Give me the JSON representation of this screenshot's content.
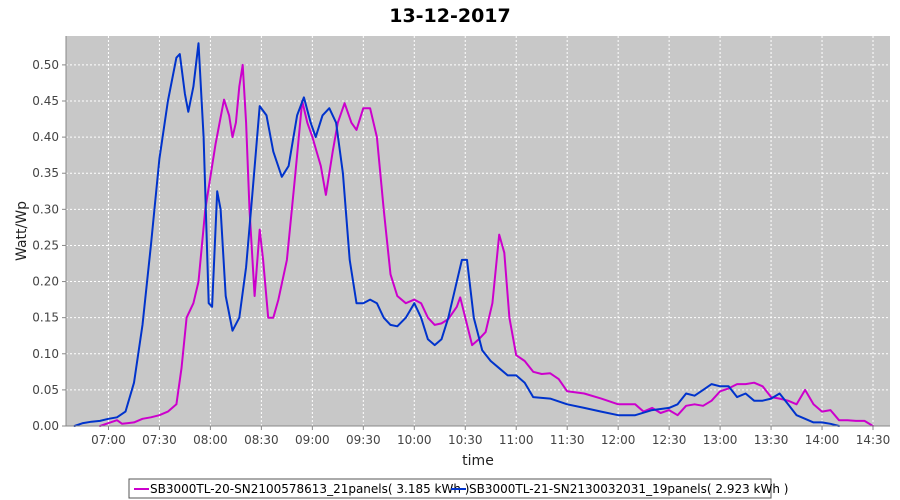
{
  "chart_data": {
    "type": "line",
    "title": "13-12-2017",
    "xlabel": "time",
    "ylabel": "Watt/Wp",
    "xlim": [
      "06:35",
      "14:40"
    ],
    "ylim": [
      0,
      0.54
    ],
    "grid": true,
    "legend": "bottom",
    "x_ticks": [
      "07:00",
      "07:30",
      "08:00",
      "08:30",
      "09:00",
      "09:30",
      "10:00",
      "10:30",
      "11:00",
      "11:30",
      "12:00",
      "12:30",
      "13:00",
      "13:30",
      "14:00",
      "14:30"
    ],
    "y_ticks": [
      0.0,
      0.05,
      0.1,
      0.15,
      0.2,
      0.25,
      0.3,
      0.35,
      0.4,
      0.45,
      0.5
    ],
    "y_tick_labels": [
      "0.00",
      "0.05",
      "0.10",
      "0.15",
      "0.20",
      "0.25",
      "0.30",
      "0.35",
      "0.40",
      "0.45",
      "0.50"
    ],
    "series": [
      {
        "name": "SB3000TL-20-SN2100578613_21panels( 3.185 kWh )",
        "color": "#cc00cc",
        "points": [
          [
            "06:55",
            0.0
          ],
          [
            "07:00",
            0.004
          ],
          [
            "07:05",
            0.008
          ],
          [
            "07:08",
            0.003
          ],
          [
            "07:15",
            0.005
          ],
          [
            "07:20",
            0.01
          ],
          [
            "07:25",
            0.012
          ],
          [
            "07:30",
            0.015
          ],
          [
            "07:35",
            0.02
          ],
          [
            "07:40",
            0.03
          ],
          [
            "07:43",
            0.08
          ],
          [
            "07:46",
            0.15
          ],
          [
            "07:50",
            0.17
          ],
          [
            "07:53",
            0.2
          ],
          [
            "07:57",
            0.3
          ],
          [
            "08:03",
            0.39
          ],
          [
            "08:08",
            0.452
          ],
          [
            "08:11",
            0.43
          ],
          [
            "08:13",
            0.4
          ],
          [
            "08:15",
            0.42
          ],
          [
            "08:17",
            0.47
          ],
          [
            "08:19",
            0.5
          ],
          [
            "08:21",
            0.42
          ],
          [
            "08:23",
            0.3
          ],
          [
            "08:26",
            0.18
          ],
          [
            "08:29",
            0.272
          ],
          [
            "08:31",
            0.23
          ],
          [
            "08:34",
            0.15
          ],
          [
            "08:37",
            0.15
          ],
          [
            "08:40",
            0.175
          ],
          [
            "08:45",
            0.23
          ],
          [
            "08:50",
            0.35
          ],
          [
            "08:54",
            0.45
          ],
          [
            "08:57",
            0.42
          ],
          [
            "09:00",
            0.4
          ],
          [
            "09:05",
            0.36
          ],
          [
            "09:08",
            0.32
          ],
          [
            "09:12",
            0.38
          ],
          [
            "09:15",
            0.42
          ],
          [
            "09:19",
            0.447
          ],
          [
            "09:23",
            0.42
          ],
          [
            "09:26",
            0.41
          ],
          [
            "09:30",
            0.44
          ],
          [
            "09:34",
            0.44
          ],
          [
            "09:38",
            0.4
          ],
          [
            "09:42",
            0.3
          ],
          [
            "09:46",
            0.21
          ],
          [
            "09:50",
            0.18
          ],
          [
            "09:55",
            0.17
          ],
          [
            "10:00",
            0.175
          ],
          [
            "10:04",
            0.17
          ],
          [
            "10:08",
            0.15
          ],
          [
            "10:12",
            0.14
          ],
          [
            "10:16",
            0.142
          ],
          [
            "10:20",
            0.148
          ],
          [
            "10:25",
            0.165
          ],
          [
            "10:27",
            0.178
          ],
          [
            "10:30",
            0.15
          ],
          [
            "10:34",
            0.112
          ],
          [
            "10:38",
            0.12
          ],
          [
            "10:42",
            0.13
          ],
          [
            "10:46",
            0.17
          ],
          [
            "10:50",
            0.265
          ],
          [
            "10:53",
            0.24
          ],
          [
            "10:56",
            0.15
          ],
          [
            "11:00",
            0.098
          ],
          [
            "11:05",
            0.09
          ],
          [
            "11:10",
            0.075
          ],
          [
            "11:15",
            0.072
          ],
          [
            "11:20",
            0.073
          ],
          [
            "11:25",
            0.065
          ],
          [
            "11:30",
            0.048
          ],
          [
            "11:40",
            0.045
          ],
          [
            "11:50",
            0.038
          ],
          [
            "12:00",
            0.03
          ],
          [
            "12:10",
            0.03
          ],
          [
            "12:15",
            0.02
          ],
          [
            "12:20",
            0.025
          ],
          [
            "12:25",
            0.018
          ],
          [
            "12:30",
            0.022
          ],
          [
            "12:35",
            0.015
          ],
          [
            "12:40",
            0.028
          ],
          [
            "12:45",
            0.03
          ],
          [
            "12:50",
            0.028
          ],
          [
            "12:55",
            0.035
          ],
          [
            "13:00",
            0.048
          ],
          [
            "13:05",
            0.052
          ],
          [
            "13:10",
            0.058
          ],
          [
            "13:15",
            0.058
          ],
          [
            "13:20",
            0.06
          ],
          [
            "13:25",
            0.055
          ],
          [
            "13:30",
            0.04
          ],
          [
            "13:35",
            0.038
          ],
          [
            "13:40",
            0.035
          ],
          [
            "13:45",
            0.03
          ],
          [
            "13:50",
            0.05
          ],
          [
            "13:55",
            0.03
          ],
          [
            "14:00",
            0.02
          ],
          [
            "14:05",
            0.022
          ],
          [
            "14:10",
            0.008
          ],
          [
            "14:15",
            0.008
          ],
          [
            "14:20",
            0.007
          ],
          [
            "14:25",
            0.007
          ],
          [
            "14:30",
            0.0
          ]
        ]
      },
      {
        "name": "SB3000TL-21-SN2130032031_19panels( 2.923 kWh )",
        "color": "#0033cc",
        "points": [
          [
            "06:40",
            0.0
          ],
          [
            "06:45",
            0.004
          ],
          [
            "06:50",
            0.006
          ],
          [
            "06:55",
            0.007
          ],
          [
            "07:00",
            0.01
          ],
          [
            "07:05",
            0.012
          ],
          [
            "07:10",
            0.02
          ],
          [
            "07:15",
            0.06
          ],
          [
            "07:20",
            0.14
          ],
          [
            "07:25",
            0.25
          ],
          [
            "07:30",
            0.37
          ],
          [
            "07:35",
            0.45
          ],
          [
            "07:40",
            0.51
          ],
          [
            "07:42",
            0.515
          ],
          [
            "07:45",
            0.46
          ],
          [
            "07:47",
            0.435
          ],
          [
            "07:50",
            0.47
          ],
          [
            "07:53",
            0.53
          ],
          [
            "07:56",
            0.4
          ],
          [
            "07:59",
            0.17
          ],
          [
            "08:01",
            0.165
          ],
          [
            "08:04",
            0.325
          ],
          [
            "08:06",
            0.3
          ],
          [
            "08:09",
            0.18
          ],
          [
            "08:13",
            0.132
          ],
          [
            "08:17",
            0.15
          ],
          [
            "08:21",
            0.22
          ],
          [
            "08:25",
            0.33
          ],
          [
            "08:29",
            0.443
          ],
          [
            "08:33",
            0.43
          ],
          [
            "08:37",
            0.38
          ],
          [
            "08:42",
            0.345
          ],
          [
            "08:46",
            0.36
          ],
          [
            "08:51",
            0.43
          ],
          [
            "08:55",
            0.455
          ],
          [
            "08:59",
            0.42
          ],
          [
            "09:02",
            0.4
          ],
          [
            "09:06",
            0.43
          ],
          [
            "09:10",
            0.44
          ],
          [
            "09:14",
            0.42
          ],
          [
            "09:18",
            0.35
          ],
          [
            "09:22",
            0.23
          ],
          [
            "09:26",
            0.17
          ],
          [
            "09:30",
            0.17
          ],
          [
            "09:34",
            0.175
          ],
          [
            "09:38",
            0.17
          ],
          [
            "09:42",
            0.15
          ],
          [
            "09:46",
            0.14
          ],
          [
            "09:50",
            0.138
          ],
          [
            "09:55",
            0.15
          ],
          [
            "10:00",
            0.17
          ],
          [
            "10:04",
            0.15
          ],
          [
            "10:08",
            0.12
          ],
          [
            "10:12",
            0.112
          ],
          [
            "10:16",
            0.12
          ],
          [
            "10:20",
            0.15
          ],
          [
            "10:24",
            0.19
          ],
          [
            "10:28",
            0.23
          ],
          [
            "10:31",
            0.23
          ],
          [
            "10:35",
            0.15
          ],
          [
            "10:40",
            0.105
          ],
          [
            "10:45",
            0.09
          ],
          [
            "10:50",
            0.08
          ],
          [
            "10:55",
            0.07
          ],
          [
            "11:00",
            0.07
          ],
          [
            "11:05",
            0.06
          ],
          [
            "11:10",
            0.04
          ],
          [
            "11:20",
            0.038
          ],
          [
            "11:30",
            0.03
          ],
          [
            "11:40",
            0.025
          ],
          [
            "11:50",
            0.02
          ],
          [
            "12:00",
            0.015
          ],
          [
            "12:10",
            0.015
          ],
          [
            "12:20",
            0.022
          ],
          [
            "12:30",
            0.025
          ],
          [
            "12:35",
            0.03
          ],
          [
            "12:40",
            0.045
          ],
          [
            "12:45",
            0.042
          ],
          [
            "12:50",
            0.05
          ],
          [
            "12:55",
            0.058
          ],
          [
            "13:00",
            0.055
          ],
          [
            "13:05",
            0.055
          ],
          [
            "13:10",
            0.04
          ],
          [
            "13:15",
            0.045
          ],
          [
            "13:20",
            0.035
          ],
          [
            "13:25",
            0.035
          ],
          [
            "13:30",
            0.038
          ],
          [
            "13:35",
            0.045
          ],
          [
            "13:40",
            0.03
          ],
          [
            "13:45",
            0.015
          ],
          [
            "13:50",
            0.01
          ],
          [
            "13:55",
            0.005
          ],
          [
            "14:00",
            0.005
          ],
          [
            "14:05",
            0.003
          ],
          [
            "14:10",
            0.0
          ]
        ]
      }
    ]
  }
}
